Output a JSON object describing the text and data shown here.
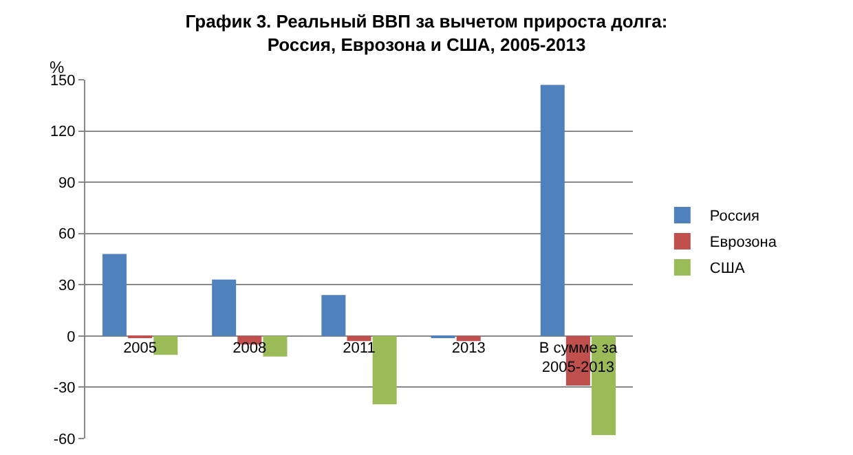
{
  "chart_data": {
    "type": "bar",
    "title": "График 3. Реальный ВВП за вычетом прироста долга: Россия, Еврозона и США, 2005-2013",
    "ylabel": "%",
    "categories": [
      "2005",
      "2008",
      "2011",
      "2013",
      "В сумме за 2005-2013"
    ],
    "series": [
      {
        "name": "Россия",
        "color": "#4f81bd",
        "values": [
          48,
          33,
          24,
          -1,
          147
        ]
      },
      {
        "name": "Еврозона",
        "color": "#c0504d",
        "values": [
          -1,
          -5,
          -3,
          -3,
          -29
        ]
      },
      {
        "name": "США",
        "color": "#9bbb59",
        "values": [
          -11,
          -12,
          -40,
          0,
          -58
        ]
      }
    ],
    "ylim": [
      -60,
      150
    ],
    "yticks": [
      -60,
      -30,
      0,
      30,
      60,
      90,
      120,
      150
    ],
    "grid": "y",
    "legend": "right"
  }
}
